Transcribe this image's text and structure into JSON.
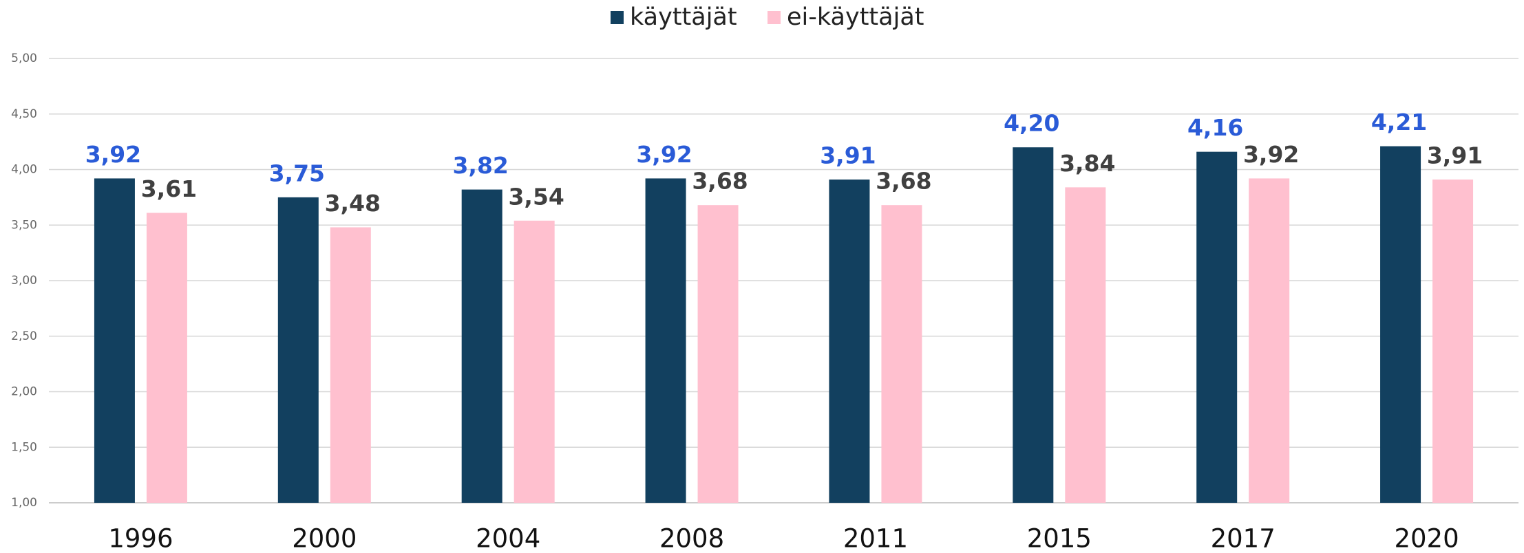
{
  "chart_data": {
    "type": "bar",
    "categories": [
      "1996",
      "2000",
      "2004",
      "2008",
      "2011",
      "2015",
      "2017",
      "2020"
    ],
    "series": [
      {
        "name": "käyttäjät",
        "color": "#12405f",
        "label_color": "#2a5bd7",
        "values": [
          3.92,
          3.75,
          3.82,
          3.92,
          3.91,
          4.2,
          4.16,
          4.21
        ],
        "value_labels": [
          "3,92",
          "3,75",
          "3,82",
          "3,92",
          "3,91",
          "4,20",
          "4,16",
          "4,21"
        ]
      },
      {
        "name": "ei-käyttäjät",
        "color": "#ffc0cf",
        "label_color": "#404040",
        "values": [
          3.61,
          3.48,
          3.54,
          3.68,
          3.68,
          3.84,
          3.92,
          3.91
        ],
        "value_labels": [
          "3,61",
          "3,48",
          "3,54",
          "3,68",
          "3,68",
          "3,84",
          "3,92",
          "3,91"
        ]
      }
    ],
    "ylim": [
      1,
      5
    ],
    "yticks": [
      {
        "value": 1,
        "label": "1,00"
      },
      {
        "value": 1.5,
        "label": "1,50"
      },
      {
        "value": 2,
        "label": "2,00"
      },
      {
        "value": 2.5,
        "label": "2,50"
      },
      {
        "value": 3,
        "label": "3,00"
      },
      {
        "value": 3.5,
        "label": "3,50"
      },
      {
        "value": 4,
        "label": "4,00"
      },
      {
        "value": 4.5,
        "label": "4,50"
      },
      {
        "value": 5,
        "label": "5,00"
      }
    ],
    "grid": true,
    "legend": "top"
  }
}
